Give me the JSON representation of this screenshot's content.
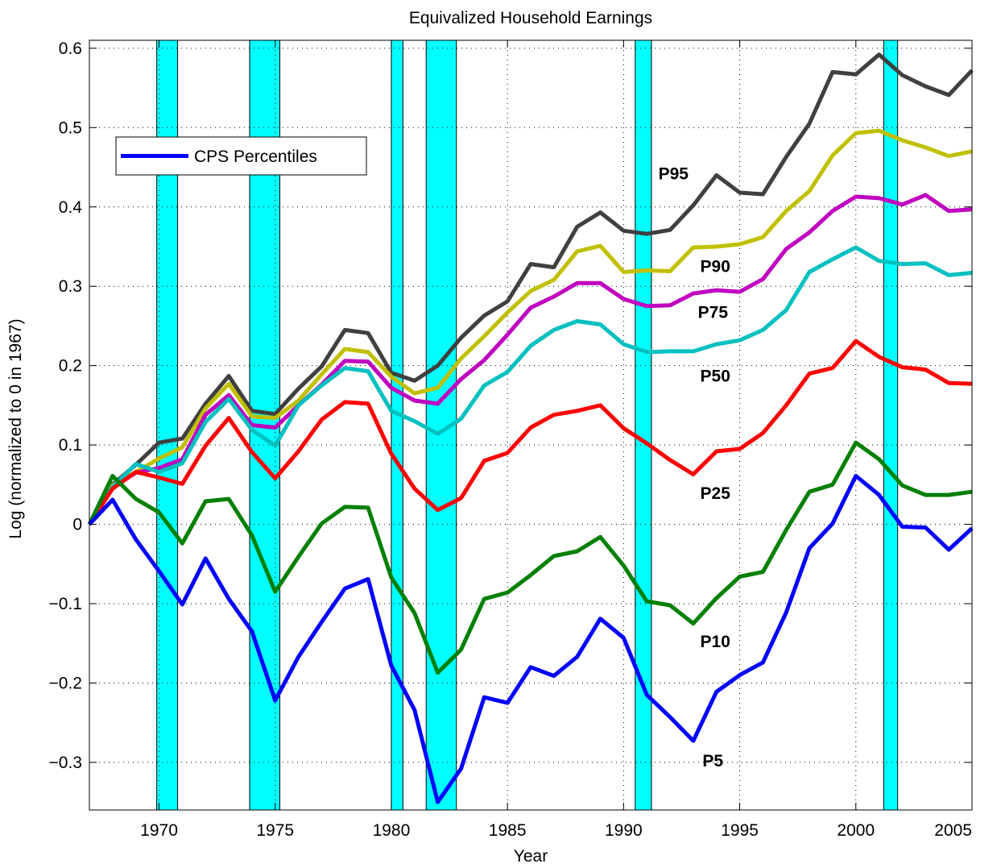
{
  "chart_data": {
    "type": "line",
    "title": "Equivalized Household Earnings",
    "xlabel": "Year",
    "ylabel": "Log (normalized to 0 in 1967)",
    "xlim": [
      1967,
      2005
    ],
    "ylim": [
      -0.36,
      0.61
    ],
    "xticks": [
      1970,
      1975,
      1980,
      1985,
      1990,
      1995,
      2000,
      2005
    ],
    "yticks": [
      -0.3,
      -0.2,
      -0.1,
      0,
      0.1,
      0.2,
      0.3,
      0.4,
      0.5,
      0.6
    ],
    "ytick_labels": [
      "−0.3",
      "−0.2",
      "−0.1",
      "0",
      "0.1",
      "0.2",
      "0.3",
      "0.4",
      "0.5",
      "0.6"
    ],
    "grid": true,
    "legend": {
      "entries": [
        "CPS Percentiles"
      ],
      "position": "top-left",
      "color": "#0000ff"
    },
    "recession_shading": {
      "color": "#00ffff",
      "periods": [
        [
          1969.9,
          1970.8
        ],
        [
          1973.9,
          1975.2
        ],
        [
          1980.0,
          1980.5
        ],
        [
          1981.5,
          1982.8
        ],
        [
          1990.5,
          1991.2
        ],
        [
          2001.2,
          2001.8
        ]
      ]
    },
    "x": [
      1967,
      1968,
      1969,
      1970,
      1971,
      1972,
      1973,
      1974,
      1975,
      1976,
      1977,
      1978,
      1979,
      1980,
      1981,
      1982,
      1983,
      1984,
      1985,
      1986,
      1987,
      1988,
      1989,
      1990,
      1991,
      1992,
      1993,
      1994,
      1995,
      1996,
      1997,
      1998,
      1999,
      2000,
      2001,
      2002,
      2003,
      2004,
      2005
    ],
    "series": [
      {
        "name": "P95",
        "color": "#404040",
        "values": [
          0,
          0.05,
          0.075,
          0.103,
          0.108,
          0.152,
          0.187,
          0.143,
          0.139,
          0.171,
          0.199,
          0.245,
          0.241,
          0.191,
          0.181,
          0.2,
          0.235,
          0.263,
          0.281,
          0.328,
          0.324,
          0.375,
          0.393,
          0.37,
          0.366,
          0.371,
          0.402,
          0.44,
          0.418,
          0.416,
          0.463,
          0.505,
          0.57,
          0.567,
          0.592,
          0.566,
          0.552,
          0.541,
          0.572
        ]
      },
      {
        "name": "P90",
        "color": "#c0c000",
        "values": [
          0,
          0.049,
          0.066,
          0.083,
          0.097,
          0.146,
          0.177,
          0.136,
          0.134,
          0.156,
          0.189,
          0.221,
          0.217,
          0.186,
          0.165,
          0.172,
          0.209,
          0.237,
          0.267,
          0.294,
          0.308,
          0.344,
          0.351,
          0.318,
          0.32,
          0.319,
          0.349,
          0.35,
          0.353,
          0.362,
          0.395,
          0.42,
          0.465,
          0.493,
          0.496,
          0.484,
          0.475,
          0.464,
          0.47
        ]
      },
      {
        "name": "P75",
        "color": "#c000c0",
        "values": [
          0,
          0.047,
          0.065,
          0.071,
          0.082,
          0.138,
          0.163,
          0.125,
          0.122,
          0.15,
          0.176,
          0.206,
          0.205,
          0.172,
          0.156,
          0.152,
          0.183,
          0.207,
          0.239,
          0.273,
          0.287,
          0.304,
          0.304,
          0.284,
          0.275,
          0.276,
          0.291,
          0.295,
          0.293,
          0.309,
          0.347,
          0.368,
          0.395,
          0.413,
          0.411,
          0.403,
          0.415,
          0.395,
          0.397
        ]
      },
      {
        "name": "P50",
        "color": "#00c0c0",
        "values": [
          0,
          0.047,
          0.076,
          0.066,
          0.077,
          0.129,
          0.158,
          0.119,
          0.099,
          0.15,
          0.175,
          0.197,
          0.193,
          0.143,
          0.13,
          0.114,
          0.133,
          0.175,
          0.192,
          0.225,
          0.245,
          0.256,
          0.252,
          0.227,
          0.217,
          0.218,
          0.218,
          0.227,
          0.232,
          0.245,
          0.27,
          0.318,
          0.334,
          0.349,
          0.332,
          0.328,
          0.329,
          0.314,
          0.317
        ]
      },
      {
        "name": "P25",
        "color": "#ff0000",
        "values": [
          0,
          0.045,
          0.066,
          0.059,
          0.051,
          0.099,
          0.134,
          0.091,
          0.058,
          0.092,
          0.132,
          0.154,
          0.152,
          0.089,
          0.045,
          0.018,
          0.033,
          0.08,
          0.09,
          0.122,
          0.138,
          0.143,
          0.15,
          0.121,
          0.102,
          0.081,
          0.063,
          0.092,
          0.095,
          0.115,
          0.15,
          0.19,
          0.197,
          0.231,
          0.211,
          0.198,
          0.195,
          0.178,
          0.177
        ]
      },
      {
        "name": "P10",
        "color": "#008000",
        "values": [
          0,
          0.061,
          0.032,
          0.015,
          -0.024,
          0.029,
          0.032,
          -0.014,
          -0.085,
          -0.041,
          0.001,
          0.022,
          0.021,
          -0.067,
          -0.112,
          -0.187,
          -0.158,
          -0.094,
          -0.086,
          -0.064,
          -0.04,
          -0.034,
          -0.016,
          -0.052,
          -0.097,
          -0.102,
          -0.125,
          -0.093,
          -0.066,
          -0.06,
          -0.007,
          0.041,
          0.05,
          0.103,
          0.082,
          0.049,
          0.037,
          0.037,
          0.041
        ]
      },
      {
        "name": "P5",
        "color": "#0000ff",
        "values": [
          0,
          0.031,
          -0.019,
          -0.059,
          -0.101,
          -0.043,
          -0.094,
          -0.135,
          -0.222,
          -0.167,
          -0.123,
          -0.081,
          -0.069,
          -0.178,
          -0.234,
          -0.35,
          -0.308,
          -0.218,
          -0.225,
          -0.18,
          -0.191,
          -0.167,
          -0.119,
          -0.143,
          -0.215,
          -0.243,
          -0.273,
          -0.211,
          -0.19,
          -0.174,
          -0.111,
          -0.03,
          0.001,
          0.061,
          0.037,
          -0.003,
          -0.004,
          -0.032,
          -0.005
        ]
      }
    ],
    "annotations": [
      {
        "text": "P95",
        "x": 1991.5,
        "y": 0.435
      },
      {
        "text": "P90",
        "x": 1993.3,
        "y": 0.318
      },
      {
        "text": "P75",
        "x": 1993.2,
        "y": 0.26
      },
      {
        "text": "P50",
        "x": 1993.3,
        "y": 0.18
      },
      {
        "text": "P25",
        "x": 1993.3,
        "y": 0.032
      },
      {
        "text": "P10",
        "x": 1993.3,
        "y": -0.155
      },
      {
        "text": "P5",
        "x": 1993.4,
        "y": -0.305
      }
    ]
  }
}
